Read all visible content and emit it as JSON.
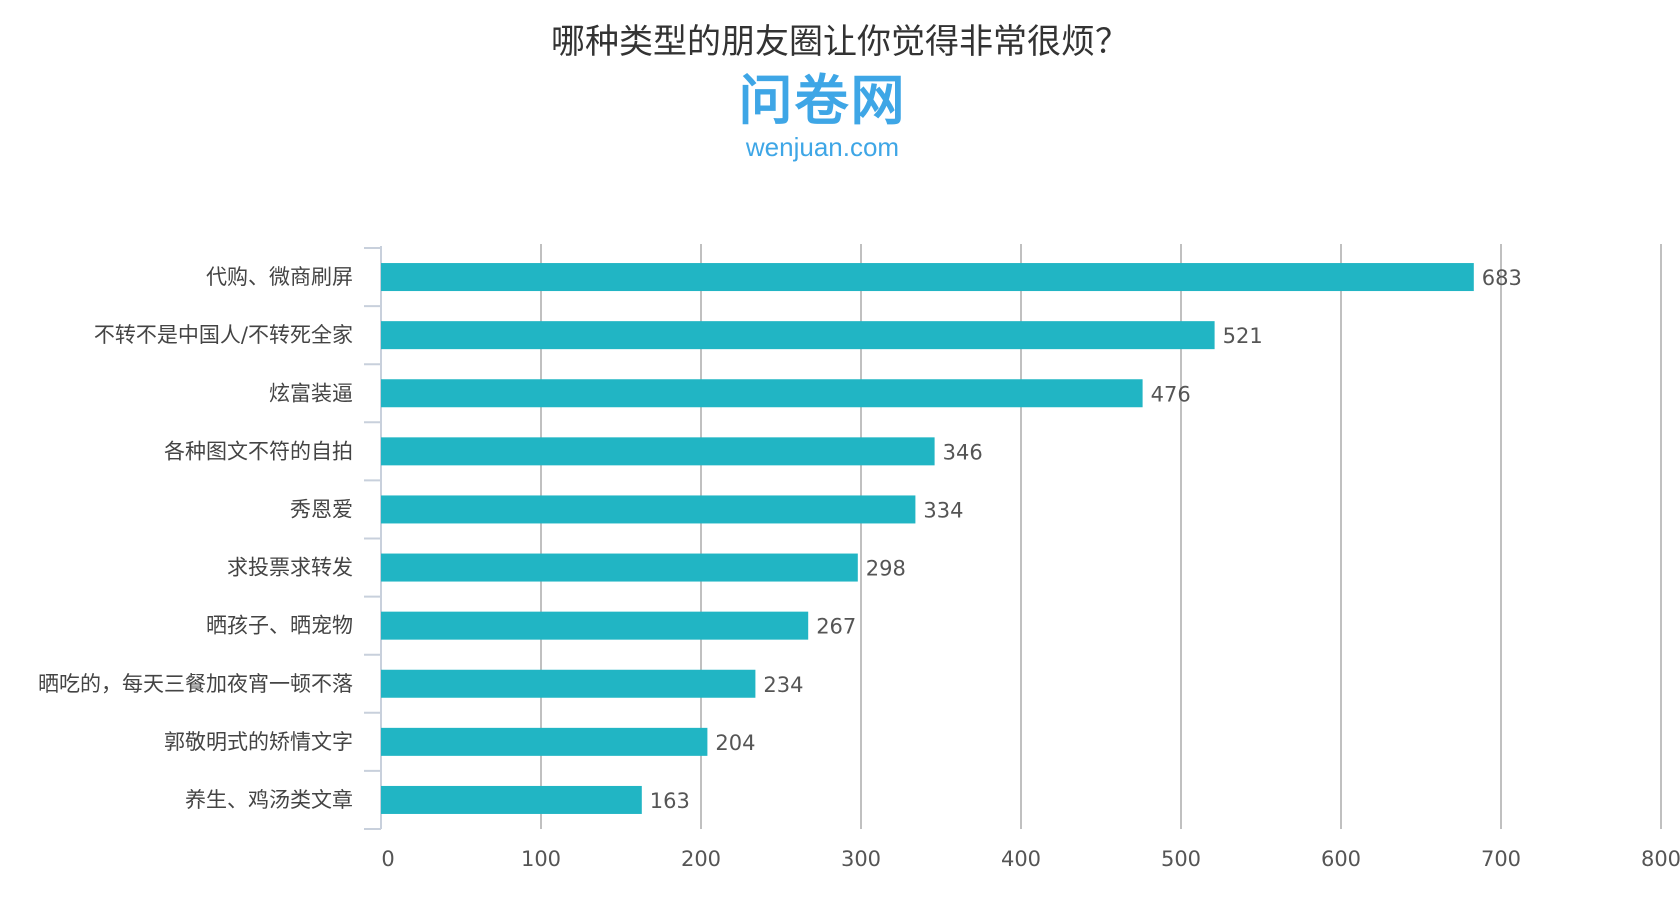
{
  "chart_data": {
    "type": "bar",
    "orientation": "horizontal",
    "title": "哪种类型的朋友圈让你觉得非常很烦？",
    "categories": [
      "代购、微商刷屏",
      "不转不是中国人/不转死全家",
      "炫富装逼",
      "各种图文不符的自拍",
      "秀恩爱",
      "求投票求转发",
      "晒孩子、晒宠物",
      "晒吃的，每天三餐加夜宵一顿不落",
      "郭敬明式的矫情文字",
      "养生、鸡汤类文章"
    ],
    "values": [
      683,
      521,
      476,
      346,
      334,
      298,
      267,
      234,
      204,
      163
    ],
    "xlim": [
      0,
      800
    ],
    "xticks": [
      0,
      100,
      200,
      300,
      400,
      500,
      600,
      700,
      800
    ],
    "grid": true,
    "data_labels": true,
    "bar_color": "#21b5c4",
    "grid_color": "#c0c0c0"
  },
  "logo": {
    "cn": "问卷网",
    "en": "wenjuan.com",
    "color": "#3ea6e6"
  }
}
